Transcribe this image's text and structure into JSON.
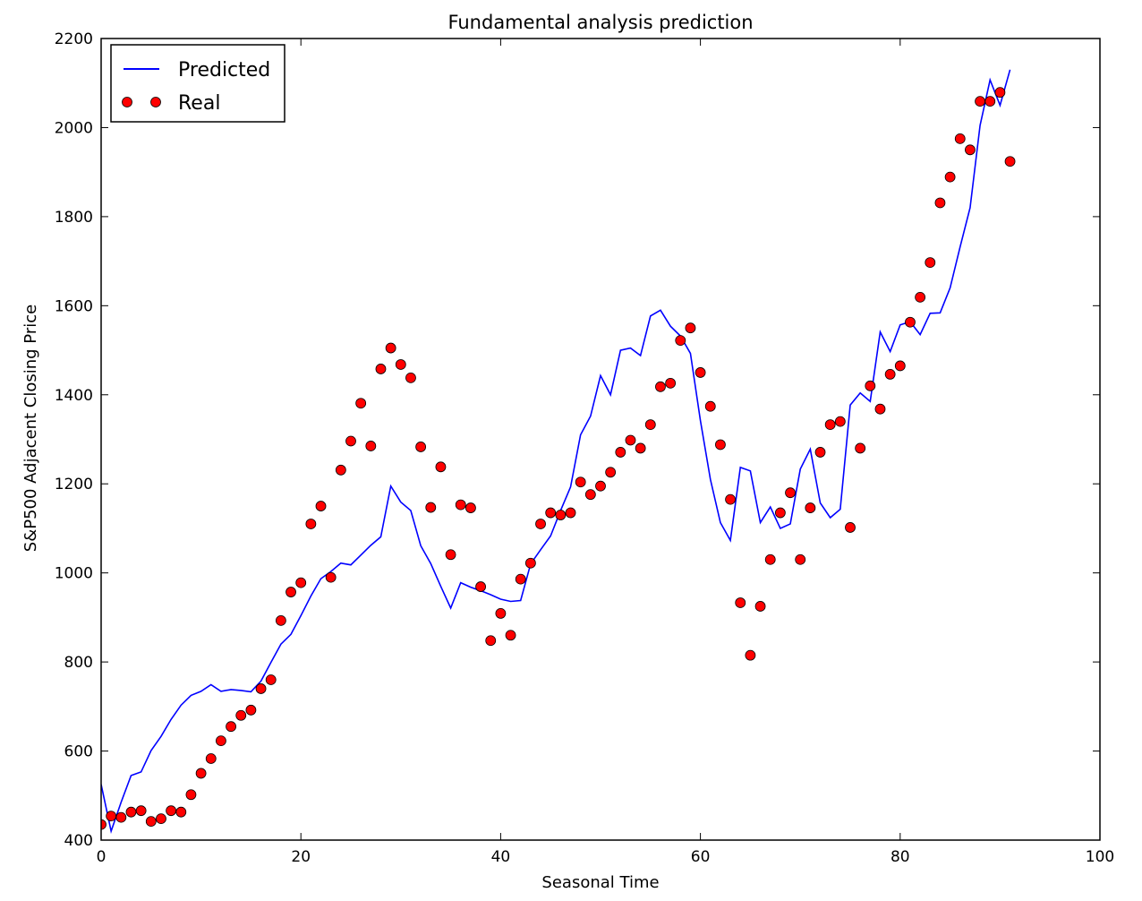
{
  "chart_data": {
    "type": "line",
    "title": "Fundamental analysis prediction",
    "xlabel": "Seasonal Time",
    "ylabel": "S&P500 Adjacent Closing Price",
    "xlim": [
      0,
      100
    ],
    "ylim": [
      400,
      2200
    ],
    "xticks": [
      "0",
      "20",
      "40",
      "60",
      "80",
      "100"
    ],
    "yticks": [
      "400",
      "600",
      "800",
      "1000",
      "1200",
      "1400",
      "1600",
      "1800",
      "2000",
      "2200"
    ],
    "grid": false,
    "legend_position": "top-left",
    "series": [
      {
        "name": "Predicted",
        "style": "line",
        "color": "#0000ff",
        "x": [
          0,
          1,
          2,
          3,
          4,
          5,
          6,
          7,
          8,
          9,
          10,
          11,
          12,
          13,
          14,
          15,
          16,
          17,
          18,
          19,
          20,
          21,
          22,
          23,
          24,
          25,
          26,
          27,
          28,
          29,
          30,
          31,
          32,
          33,
          34,
          35,
          36,
          37,
          38,
          39,
          40,
          41,
          42,
          43,
          44,
          45,
          46,
          47,
          48,
          49,
          50,
          51,
          52,
          53,
          54,
          55,
          56,
          57,
          58,
          59,
          60,
          61,
          62,
          63,
          64,
          65,
          66,
          67,
          68,
          69,
          70,
          71,
          72,
          73,
          74,
          75,
          76,
          77,
          78,
          79,
          80,
          81,
          82,
          83,
          84,
          85,
          86,
          87,
          88,
          89,
          90,
          91
        ],
        "values": [
          525,
          420,
          485,
          545,
          553,
          601,
          633,
          671,
          703,
          725,
          734,
          749,
          734,
          738,
          736,
          733,
          757,
          799,
          840,
          862,
          904,
          948,
          987,
          1003,
          1022,
          1018,
          1040,
          1062,
          1081,
          1195,
          1159,
          1140,
          1061,
          1021,
          970,
          921,
          978,
          968,
          960,
          951,
          941,
          936,
          938,
          1020,
          1052,
          1083,
          1140,
          1193,
          1310,
          1352,
          1443,
          1400,
          1500,
          1505,
          1488,
          1577,
          1590,
          1554,
          1532,
          1493,
          1342,
          1210,
          1113,
          1073,
          1237,
          1229,
          1113,
          1148,
          1100,
          1110,
          1233,
          1278,
          1157,
          1124,
          1143,
          1377,
          1404,
          1385,
          1541,
          1497,
          1557,
          1564,
          1535,
          1583,
          1584,
          1640,
          1732,
          1820,
          2005,
          2107,
          2050,
          2130
        ]
      },
      {
        "name": "Real",
        "style": "markers",
        "color": "#ff0000",
        "x": [
          0,
          1,
          2,
          3,
          4,
          5,
          6,
          7,
          8,
          9,
          10,
          11,
          12,
          13,
          14,
          15,
          16,
          17,
          18,
          19,
          20,
          21,
          22,
          23,
          24,
          25,
          26,
          27,
          28,
          29,
          30,
          31,
          32,
          33,
          34,
          35,
          36,
          37,
          38,
          39,
          40,
          41,
          42,
          43,
          44,
          45,
          46,
          47,
          48,
          49,
          50,
          51,
          52,
          53,
          54,
          55,
          56,
          57,
          58,
          59,
          60,
          61,
          62,
          63,
          64,
          65,
          66,
          67,
          68,
          69,
          70,
          71,
          72,
          73,
          74,
          75,
          76,
          77,
          78,
          79,
          80,
          81,
          82,
          83,
          84,
          85,
          86,
          87,
          88,
          89,
          90,
          91
        ],
        "values": [
          435,
          454,
          451,
          463,
          466,
          442,
          448,
          466,
          463,
          502,
          550,
          583,
          623,
          655,
          680,
          692,
          740,
          760,
          893,
          957,
          978,
          1110,
          1150,
          990,
          1231,
          1296,
          1381,
          1285,
          1458,
          1505,
          1468,
          1438,
          1283,
          1147,
          1238,
          1041,
          1153,
          1146,
          969,
          848,
          909,
          860,
          986,
          1022,
          1110,
          1135,
          1130,
          1135,
          1204,
          1176,
          1195,
          1226,
          1271,
          1298,
          1280,
          1333,
          1418,
          1426,
          1522,
          1550,
          1450,
          1374,
          1288,
          1165,
          933,
          815,
          925,
          1030,
          1135,
          1180,
          1030,
          1146,
          1271,
          1333,
          1340,
          1102,
          1280,
          1420,
          1368,
          1446,
          1465,
          1563,
          1619,
          1697,
          1831,
          1889,
          1975,
          1950,
          2059,
          2059,
          2079,
          1924
        ]
      }
    ]
  }
}
